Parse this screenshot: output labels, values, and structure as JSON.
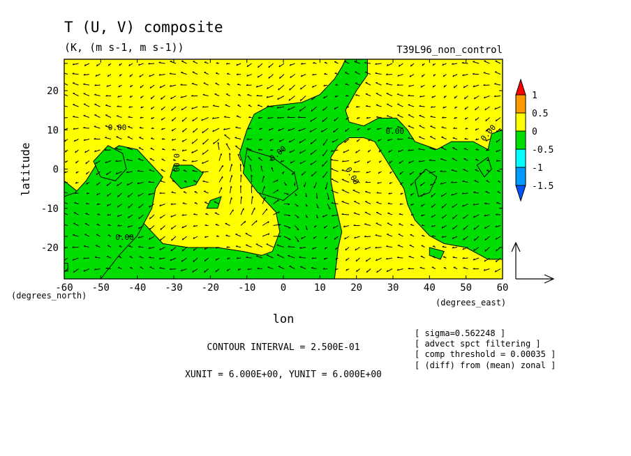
{
  "chart_data": {
    "type": "heatmap",
    "title": "T (U, V) composite",
    "subtitle": "(K, (m s-1, m s-1))",
    "run_label": "T39L96_non_control",
    "xlabel": "lon",
    "ylabel": "latitude",
    "x_unit_label": "(degrees_east)",
    "y_unit_label": "(degrees_north)",
    "xlim": [
      -60,
      60
    ],
    "ylim": [
      -28,
      28
    ],
    "x_ticks": [
      -60,
      -50,
      -40,
      -30,
      -20,
      -10,
      0,
      10,
      20,
      30,
      40,
      50,
      60
    ],
    "x_tick_labels": [
      "-60",
      "-50",
      "-40",
      "-30",
      "-20",
      "-10",
      "0",
      "10",
      "20",
      "30",
      "40",
      "50",
      "60"
    ],
    "y_ticks": [
      -20,
      -10,
      0,
      10,
      20
    ],
    "y_tick_labels": [
      "-20",
      "-10",
      "0",
      "10",
      "20"
    ],
    "contour_label": "0.00",
    "contour_interval_text": "CONTOUR INTERVAL = 2.500E-01",
    "unit_text": "XUNIT = 6.000E+00, YUNIT = 6.000E+00",
    "notes": [
      "[ sigma=0.562248 ]",
      "[ advect spct filtering ]",
      "[ comp threshold = 0.00035 ]",
      "[ (diff) from (mean) zonal ]"
    ],
    "colorbar": {
      "labels": [
        "1",
        "0.5",
        "0",
        "-0.5",
        "-1",
        "-1.5"
      ],
      "levels": [
        1,
        0.5,
        0,
        -0.5,
        -1,
        -1.5
      ],
      "colors": [
        "#ff0000",
        "#ff9900",
        "#ffff00",
        "#00dd00",
        "#00ffff",
        "#0099ff",
        "#0055ff"
      ]
    },
    "positive_color": "#ffff00",
    "negative_color": "#00dd00",
    "negative_regions": [
      [
        [
          -60,
          -28
        ],
        [
          -60,
          -3
        ],
        [
          -56,
          -6
        ],
        [
          -50,
          -8
        ],
        [
          -43,
          -10
        ],
        [
          -38,
          -14
        ],
        [
          -33,
          -19
        ],
        [
          -26,
          -20
        ],
        [
          -18,
          -20
        ],
        [
          -11,
          -21
        ],
        [
          -6,
          -22
        ],
        [
          -3,
          -21
        ],
        [
          -1,
          -16
        ],
        [
          -2,
          -11
        ],
        [
          -6,
          -7
        ],
        [
          -10,
          -2
        ],
        [
          -12,
          4
        ],
        [
          -10,
          10
        ],
        [
          -8,
          14
        ],
        [
          -4,
          16
        ],
        [
          5,
          17
        ],
        [
          10,
          19
        ],
        [
          14,
          23
        ],
        [
          16,
          26
        ],
        [
          17,
          28
        ],
        [
          23,
          28
        ],
        [
          23,
          24
        ],
        [
          20,
          20
        ],
        [
          17,
          15
        ],
        [
          18,
          12
        ],
        [
          22,
          11
        ],
        [
          26,
          13
        ],
        [
          31,
          13
        ],
        [
          34,
          10
        ],
        [
          36,
          7
        ],
        [
          42,
          5
        ],
        [
          46,
          7
        ],
        [
          52,
          7
        ],
        [
          56,
          5
        ],
        [
          57,
          9
        ],
        [
          60,
          10
        ],
        [
          60,
          -23
        ],
        [
          56,
          -23
        ],
        [
          50,
          -20
        ],
        [
          44,
          -19
        ],
        [
          40,
          -17
        ],
        [
          36,
          -13
        ],
        [
          34,
          -9
        ],
        [
          33,
          -5
        ],
        [
          31,
          -2
        ],
        [
          29,
          1
        ],
        [
          27,
          4
        ],
        [
          25,
          7
        ],
        [
          22,
          8
        ],
        [
          18,
          8
        ],
        [
          15,
          6
        ],
        [
          13,
          3
        ],
        [
          13,
          -3
        ],
        [
          14,
          -8
        ],
        [
          15,
          -12
        ],
        [
          16,
          -16
        ],
        [
          15,
          -20
        ],
        [
          14,
          -28
        ]
      ],
      [
        [
          -35,
          -5
        ],
        [
          -33,
          -2
        ],
        [
          -40,
          5
        ],
        [
          -45,
          6
        ],
        [
          -50,
          3
        ],
        [
          -54,
          -3
        ],
        [
          -57,
          -6
        ],
        [
          -60,
          -7
        ],
        [
          -60,
          -28
        ],
        [
          -50,
          -28
        ],
        [
          -45,
          -22
        ],
        [
          -40,
          -17
        ],
        [
          -36,
          -10
        ]
      ],
      [
        [
          -30,
          1
        ],
        [
          -25,
          1
        ],
        [
          -22,
          -1
        ],
        [
          -24,
          -4
        ],
        [
          -28,
          -5
        ],
        [
          -31,
          -2
        ]
      ],
      [
        [
          -20,
          -8
        ],
        [
          -17,
          -7
        ],
        [
          -18,
          -10
        ],
        [
          -21,
          -10
        ]
      ],
      [
        [
          -10,
          5
        ],
        [
          -3,
          3
        ],
        [
          3,
          -1
        ],
        [
          4,
          -5
        ],
        [
          0,
          -8
        ],
        [
          -7,
          -6
        ],
        [
          -11,
          -1
        ]
      ],
      [
        [
          -52,
          2
        ],
        [
          -48,
          6
        ],
        [
          -44,
          4
        ],
        [
          -43,
          0
        ],
        [
          -46,
          -3
        ],
        [
          -50,
          -2
        ]
      ],
      [
        [
          36,
          -3
        ],
        [
          39,
          0
        ],
        [
          42,
          -2
        ],
        [
          40,
          -6
        ],
        [
          37,
          -7
        ]
      ],
      [
        [
          53,
          1
        ],
        [
          56,
          3
        ],
        [
          57,
          0
        ],
        [
          55,
          -2
        ]
      ],
      [
        [
          40,
          -20
        ],
        [
          44,
          -21
        ],
        [
          43,
          -23
        ],
        [
          40,
          -22
        ]
      ],
      [
        [
          -60,
          -24
        ],
        [
          -59,
          -24
        ],
        [
          -59,
          -26
        ],
        [
          -60,
          -26
        ]
      ]
    ]
  }
}
